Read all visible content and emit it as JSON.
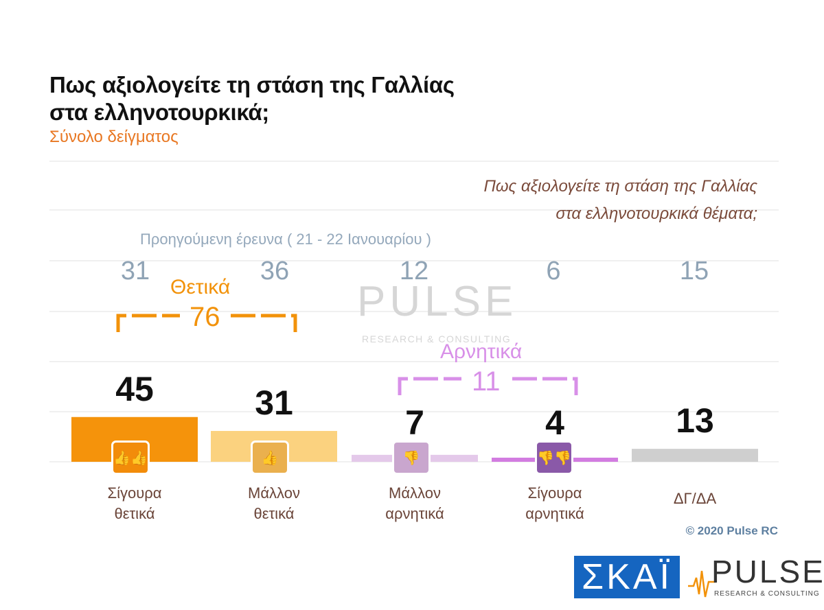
{
  "header": {
    "title_line1": "Πως αξιολογείτε τη στάση της Γαλλίας",
    "title_line2": "στα ελληνοτουρκικά;",
    "subtitle": "Σύνολο δείγματος"
  },
  "question_note": {
    "line1": "Πως αξιολογείτε τη στάση της Γαλλίας",
    "line2": "στα ελληνοτουρκικά θέματα;"
  },
  "previous_survey": {
    "label": "Προηγούμενη έρευνα ( 21 - 22 Ιανουαρίου )",
    "values": [
      "31",
      "36",
      "12",
      "6",
      "15"
    ]
  },
  "groups": {
    "positive": {
      "label": "Θετικά",
      "total": "76",
      "color": "#f2920a"
    },
    "negative": {
      "label": "Αρνητικά",
      "total": "11",
      "color": "#d890e8"
    }
  },
  "chart_data": {
    "type": "bar",
    "categories": [
      "Σίγουρα θετικά",
      "Μάλλον θετικά",
      "Μάλλον αρνητικά",
      "Σίγουρα αρνητικά",
      "ΔΓ/ΔΑ"
    ],
    "category_lines": [
      [
        "Σίγουρα",
        "θετικά"
      ],
      [
        "Μάλλον",
        "θετικά"
      ],
      [
        "Μάλλον",
        "αρνητικά"
      ],
      [
        "Σίγουρα",
        "αρνητικά"
      ],
      [
        "ΔΓ/ΔΑ",
        ""
      ]
    ],
    "values": [
      45,
      31,
      7,
      4,
      13
    ],
    "value_labels": [
      "45",
      "31",
      "7",
      "4",
      "13"
    ],
    "colors": [
      "#f5930b",
      "#fbd27f",
      "#e4c9ea",
      "#d27ce0",
      "#cfcfcf"
    ],
    "icons": [
      "thumbs-up-double-icon",
      "thumbs-up-icon",
      "thumbs-down-icon",
      "thumbs-down-double-icon",
      ""
    ],
    "icon_colors": [
      "#f28c0a",
      "#eab04e",
      "#c9a6ce",
      "#8a59a8",
      ""
    ],
    "grid": true
  },
  "watermark": {
    "brand": "PULSE",
    "tagline": "RESEARCH & CONSULTING"
  },
  "footer": {
    "copyright": "© 2020 Pulse RC",
    "logo_skai": "ΣΚΑΪ",
    "logo_pulse": "PULSE",
    "logo_pulse_sub": "RESEARCH & CONSULTING"
  }
}
